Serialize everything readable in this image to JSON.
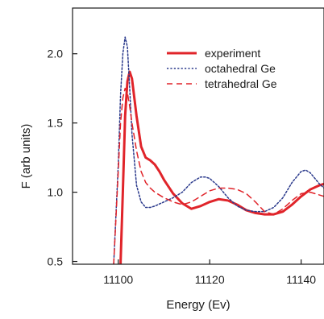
{
  "chart_data": {
    "type": "line",
    "xlabel": "Energy (Ev)",
    "ylabel": "F (arb units)",
    "xlim": [
      11090,
      11145
    ],
    "ylim": [
      0.48,
      2.33
    ],
    "xticks": [
      11100,
      11120,
      11140
    ],
    "yticks": [
      0.5,
      1.0,
      1.5,
      2.0
    ],
    "xtick_labels": [
      "11100",
      "11120",
      "11140"
    ],
    "ytick_labels": [
      "0.5",
      "1.0",
      "1.5",
      "2.0"
    ],
    "grid": false,
    "legend_position": "top-right",
    "series": [
      {
        "name": "experiment",
        "style": "solid",
        "color": "#e0242a",
        "x": [
          11100.5,
          11101,
          11101.5,
          11102,
          11102.5,
          11103,
          11104,
          11105,
          11106,
          11107,
          11108,
          11109,
          11110,
          11112,
          11114,
          11116,
          11118,
          11120,
          11122,
          11124,
          11126,
          11128,
          11130,
          11132,
          11134,
          11136,
          11138,
          11140,
          11142,
          11144,
          11145
        ],
        "y": [
          0.48,
          1.0,
          1.55,
          1.8,
          1.87,
          1.82,
          1.55,
          1.33,
          1.25,
          1.23,
          1.2,
          1.15,
          1.09,
          0.99,
          0.92,
          0.88,
          0.9,
          0.93,
          0.95,
          0.94,
          0.91,
          0.87,
          0.85,
          0.84,
          0.84,
          0.86,
          0.91,
          0.97,
          1.02,
          1.05,
          1.06
        ]
      },
      {
        "name": "octahedral Ge",
        "style": "dotted",
        "color": "#2b3a8c",
        "x": [
          11099,
          11100,
          11100.5,
          11101,
          11101.5,
          11102,
          11102.5,
          11103,
          11104,
          11105,
          11106,
          11107,
          11108,
          11110,
          11112,
          11114,
          11116,
          11118,
          11119,
          11120,
          11122,
          11124,
          11126,
          11128,
          11130,
          11132,
          11134,
          11136,
          11138,
          11140,
          11141,
          11142,
          11144,
          11145
        ],
        "y": [
          0.48,
          1.2,
          1.7,
          2.0,
          2.12,
          2.05,
          1.75,
          1.42,
          1.05,
          0.93,
          0.89,
          0.89,
          0.9,
          0.93,
          0.96,
          1.0,
          1.07,
          1.11,
          1.11,
          1.1,
          1.04,
          0.96,
          0.9,
          0.87,
          0.86,
          0.86,
          0.89,
          0.96,
          1.07,
          1.15,
          1.16,
          1.14,
          1.06,
          1.03
        ]
      },
      {
        "name": "tetrahedral Ge",
        "style": "dashed",
        "color": "#e0242a",
        "x": [
          11099,
          11100,
          11100.5,
          11101,
          11101.5,
          11102,
          11102.5,
          11103,
          11104,
          11105,
          11106,
          11107,
          11108,
          11110,
          11112,
          11114,
          11116,
          11118,
          11120,
          11122,
          11124,
          11126,
          11128,
          11130,
          11132,
          11134,
          11136,
          11138,
          11140,
          11142,
          11144,
          11145
        ],
        "y": [
          0.48,
          1.15,
          1.5,
          1.68,
          1.75,
          1.72,
          1.62,
          1.5,
          1.3,
          1.15,
          1.07,
          1.03,
          1.0,
          0.96,
          0.93,
          0.91,
          0.93,
          0.97,
          1.01,
          1.03,
          1.03,
          1.02,
          0.99,
          0.93,
          0.86,
          0.84,
          0.88,
          0.94,
          0.99,
          1.0,
          0.98,
          0.97
        ]
      }
    ]
  }
}
